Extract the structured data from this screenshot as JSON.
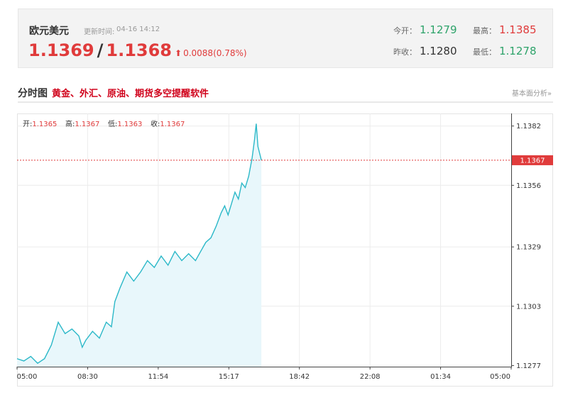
{
  "quote": {
    "name": "欧元美元",
    "time_label": "更新时间:",
    "time": "04-16 14:12",
    "bid": "1.1369",
    "slash": "/",
    "ask": "1.1368",
    "arrow": "⬆",
    "change": "0.0088(0.78%)",
    "open_label": "今开：",
    "open": "1.1279",
    "high_label": "最高：",
    "high": "1.1385",
    "prev_close_label": "昨收：",
    "prev_close": "1.1280",
    "low_label": "最低：",
    "low": "1.1278",
    "colors": {
      "up": "#e03b3b",
      "down": "#2ea36a"
    }
  },
  "section": {
    "title": "分时图",
    "link": "黄金、外汇、原油、期货多空提醒软件",
    "right_link": "基本面分析»"
  },
  "chart_data": {
    "type": "area",
    "ohlc": {
      "open_label": "开:",
      "open": "1.1365",
      "high_label": "高:",
      "high": "1.1367",
      "low_label": "低:",
      "low": "1.1363",
      "close_label": "收:",
      "close": "1.1367"
    },
    "x_ticks": [
      "05:00",
      "08:30",
      "11:54",
      "15:17",
      "18:42",
      "22:08",
      "01:34",
      "05:00"
    ],
    "y_ticks": [
      "1.1382",
      "1.1356",
      "1.1329",
      "1.1303",
      "1.1277"
    ],
    "ylim": [
      1.12765,
      1.13875
    ],
    "session": {
      "start_hour": 5,
      "span_hours": 24
    },
    "current_value": 1.1367,
    "current_label": "1.1367",
    "line_color": "#2bb8c8",
    "fill_color": "#e8f7fb",
    "ref_line_color": "#e03b3b",
    "grid": true,
    "series": [
      {
        "points": [
          [
            "05:00",
            1.128
          ],
          [
            "05:20",
            1.1279
          ],
          [
            "05:40",
            1.1281
          ],
          [
            "06:00",
            1.1278
          ],
          [
            "06:20",
            1.128
          ],
          [
            "06:40",
            1.1286
          ],
          [
            "07:00",
            1.1296
          ],
          [
            "07:20",
            1.1291
          ],
          [
            "07:40",
            1.1293
          ],
          [
            "08:00",
            1.129
          ],
          [
            "08:10",
            1.1285
          ],
          [
            "08:20",
            1.1288
          ],
          [
            "08:40",
            1.1292
          ],
          [
            "09:00",
            1.1289
          ],
          [
            "09:20",
            1.1296
          ],
          [
            "09:35",
            1.1294
          ],
          [
            "09:45",
            1.1305
          ],
          [
            "10:00",
            1.1311
          ],
          [
            "10:20",
            1.1318
          ],
          [
            "10:40",
            1.1314
          ],
          [
            "11:00",
            1.1318
          ],
          [
            "11:20",
            1.1323
          ],
          [
            "11:40",
            1.132
          ],
          [
            "12:00",
            1.1325
          ],
          [
            "12:20",
            1.1321
          ],
          [
            "12:40",
            1.1327
          ],
          [
            "13:00",
            1.1323
          ],
          [
            "13:20",
            1.1326
          ],
          [
            "13:40",
            1.1323
          ],
          [
            "13:55",
            1.1327
          ],
          [
            "14:10",
            1.1331
          ],
          [
            "14:25",
            1.1333
          ],
          [
            "14:40",
            1.1338
          ],
          [
            "14:55",
            1.1344
          ],
          [
            "15:05",
            1.1347
          ],
          [
            "15:15",
            1.1343
          ],
          [
            "15:25",
            1.1348
          ],
          [
            "15:35",
            1.1353
          ],
          [
            "15:45",
            1.135
          ],
          [
            "15:55",
            1.1357
          ],
          [
            "16:05",
            1.1355
          ],
          [
            "16:15",
            1.136
          ],
          [
            "16:25",
            1.1368
          ],
          [
            "16:32",
            1.1376
          ],
          [
            "16:37",
            1.1383
          ],
          [
            "16:42",
            1.1373
          ],
          [
            "16:47",
            1.137
          ],
          [
            "16:52",
            1.1367
          ]
        ]
      }
    ]
  }
}
